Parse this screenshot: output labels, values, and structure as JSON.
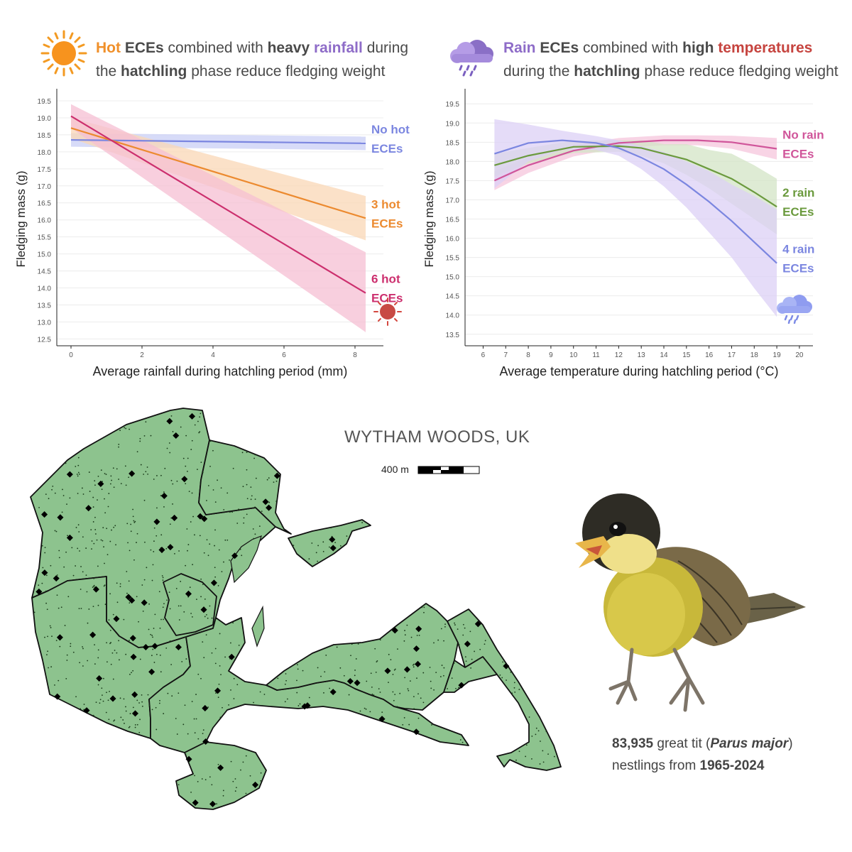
{
  "left_panel": {
    "headline": {
      "w1": "Hot",
      "w2": " ECEs",
      "w3": " combined with ",
      "w4": "heavy",
      "w5": " ",
      "w6": "rainfall",
      "w7": " during",
      "l2a": "the ",
      "l2b": "hatchling",
      "l2c": " phase reduce fledging weight"
    },
    "icon": "sun-icon"
  },
  "right_panel": {
    "headline": {
      "w1": "Rain",
      "w2": " ECEs",
      "w3": " combined with ",
      "w4": "high",
      "w5": " ",
      "w6": "temperatures",
      "l2a": "during the ",
      "l2b": "hatchling",
      "l2c": " phase reduce fledging weight"
    },
    "icon": "rain-cloud-icon"
  },
  "colors": {
    "orange": "#f0902a",
    "purple": "#8e6cc8",
    "red": "#c6443f",
    "blue_line": "#7b86e0",
    "crimson": "#cc2f6e",
    "green_line": "#6b9a3e",
    "pink_line": "#d0559a",
    "map_fill": "#8dc38e"
  },
  "chart_data": [
    {
      "type": "line",
      "xlabel": "Average rainfall during hatchling period (mm)",
      "ylabel": "Fledging mass (g)",
      "xlim": [
        -0.4,
        8.8
      ],
      "ylim": [
        12.3,
        19.75
      ],
      "xticks": [
        0,
        2,
        4,
        6,
        8
      ],
      "yticks": [
        12.5,
        13.0,
        13.5,
        14.0,
        14.5,
        15.0,
        15.5,
        16.0,
        16.5,
        17.0,
        17.5,
        18.0,
        18.5,
        19.0,
        19.5
      ],
      "grid": true,
      "series": [
        {
          "name": "No hot ECEs",
          "label1": "No hot",
          "label2": "ECEs",
          "color": "#7b86e0",
          "band_color": "#c9cff6",
          "x": [
            0,
            8.3
          ],
          "y": [
            18.35,
            18.25
          ],
          "lower": [
            18.15,
            18.05
          ],
          "upper": [
            18.55,
            18.45
          ]
        },
        {
          "name": "3 hot ECEs",
          "label1": "3 hot",
          "label2": "ECEs",
          "color": "#ec8a2f",
          "band_color": "#f9d7b5",
          "x": [
            0,
            8.3
          ],
          "y": [
            18.7,
            16.05
          ],
          "lower": [
            18.4,
            15.4
          ],
          "upper": [
            19.0,
            16.7
          ]
        },
        {
          "name": "6 hot ECEs",
          "label1": "6 hot",
          "label2": "ECEs",
          "color": "#cc2f6e",
          "band_color": "#f5bfd3",
          "x": [
            0,
            8.3
          ],
          "y": [
            19.05,
            13.85
          ],
          "lower": [
            18.7,
            12.7
          ],
          "upper": [
            19.4,
            15.05
          ]
        }
      ]
    },
    {
      "type": "line",
      "xlabel": "Average temperature during hatchling period (°C)",
      "ylabel": "Fledging mass (g)",
      "xlim": [
        5.2,
        20.6
      ],
      "ylim": [
        13.2,
        19.8
      ],
      "xticks": [
        6,
        7,
        8,
        9,
        10,
        11,
        12,
        13,
        14,
        15,
        16,
        17,
        18,
        19,
        20
      ],
      "yticks": [
        13.5,
        14.0,
        14.5,
        15.0,
        15.5,
        16.0,
        16.5,
        17.0,
        17.5,
        18.0,
        18.5,
        19.0,
        19.5
      ],
      "grid": true,
      "series": [
        {
          "name": "No rain ECEs",
          "label1": "No rain",
          "label2": "ECEs",
          "color": "#d0559a",
          "band_color": "#f6c6dc",
          "x": [
            6.5,
            8,
            10,
            12,
            14,
            15.5,
            17,
            19
          ],
          "y": [
            17.5,
            17.9,
            18.28,
            18.48,
            18.55,
            18.55,
            18.5,
            18.33
          ],
          "lower": [
            17.25,
            17.7,
            18.13,
            18.35,
            18.42,
            18.42,
            18.33,
            18.05
          ],
          "upper": [
            17.75,
            18.1,
            18.43,
            18.61,
            18.68,
            18.68,
            18.67,
            18.61
          ]
        },
        {
          "name": "2 rain ECEs",
          "label1": "2 rain",
          "label2": "ECEs",
          "color": "#6b9a3e",
          "band_color": "#d3e4c5",
          "x": [
            6.5,
            8,
            10,
            12,
            13,
            14,
            15,
            16,
            17,
            18,
            19
          ],
          "y": [
            17.9,
            18.15,
            18.38,
            18.4,
            18.35,
            18.2,
            18.05,
            17.8,
            17.55,
            17.2,
            16.82
          ],
          "lower": [
            17.6,
            17.95,
            18.22,
            18.25,
            18.15,
            17.95,
            17.65,
            17.3,
            16.9,
            16.5,
            16.1
          ],
          "upper": [
            18.2,
            18.35,
            18.54,
            18.55,
            18.55,
            18.45,
            18.45,
            18.3,
            18.2,
            17.9,
            17.55
          ]
        },
        {
          "name": "4 rain ECEs",
          "label1": "4 rain",
          "label2": "ECEs",
          "color": "#7b86e0",
          "band_color": "#dcd0f6",
          "x": [
            6.5,
            8,
            9.5,
            11,
            12,
            13,
            14,
            15,
            16,
            17,
            18,
            19
          ],
          "y": [
            18.2,
            18.48,
            18.55,
            18.48,
            18.35,
            18.1,
            17.8,
            17.4,
            16.95,
            16.45,
            15.9,
            15.35
          ],
          "lower": [
            17.3,
            18.0,
            18.3,
            18.3,
            18.15,
            17.8,
            17.35,
            16.8,
            16.15,
            15.5,
            14.7,
            13.95
          ],
          "upper": [
            19.1,
            18.96,
            18.8,
            18.66,
            18.55,
            18.4,
            18.25,
            18.0,
            17.75,
            17.4,
            17.1,
            16.75
          ]
        }
      ]
    }
  ],
  "map": {
    "title": "WYTHAM WOODS, UK",
    "scale_label": "400 m"
  },
  "caption": {
    "count": "83,935",
    "t1": " great tit (",
    "species": "Parus major",
    "t2": ")",
    "t3": "nestlings from ",
    "years": "1965-2024"
  }
}
